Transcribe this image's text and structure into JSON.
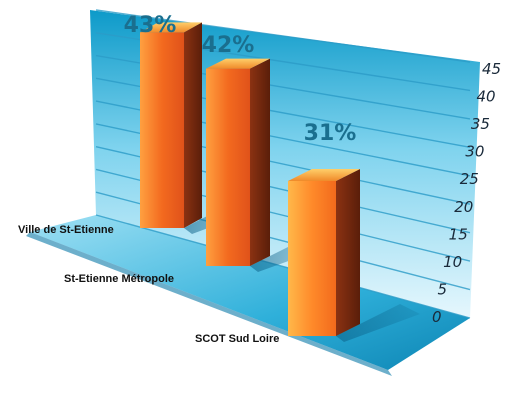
{
  "chart_data": {
    "type": "bar",
    "title": "",
    "xlabel": "",
    "ylabel": "",
    "categories": [
      "Ville de St-Etienne",
      "St-Etienne Métropole",
      "SCOT Sud Loire"
    ],
    "values": [
      43,
      42,
      31
    ],
    "value_labels": [
      "43%",
      "42%",
      "31%"
    ],
    "ylim": [
      0,
      45
    ],
    "yticks": [
      "0",
      "5",
      "10",
      "15",
      "20",
      "25",
      "30",
      "35",
      "40",
      "45"
    ],
    "grid": true,
    "legend": "none",
    "style": "3d",
    "colors": {
      "bar_front": "#f06a1e",
      "bar_side": "#7a2a10",
      "bar_top": "#f5b23a",
      "floor": "#3fb4d9",
      "wall": "#cdeffb",
      "grid": "#6ccbe8"
    }
  }
}
